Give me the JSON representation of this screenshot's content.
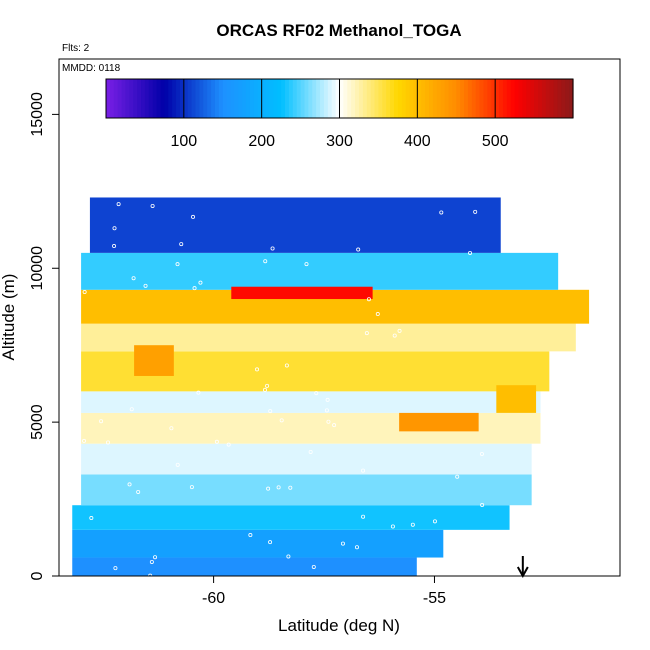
{
  "chart_data": {
    "type": "heatmap",
    "title": "ORCAS RF02 Methanol_TOGA",
    "annotations": {
      "flights": "Flts: 2",
      "date": "MMDD: 0118"
    },
    "xlabel": "Latitude (deg N)",
    "ylabel": "Altitude (m)",
    "xlim": [
      -63.5,
      -50.8
    ],
    "ylim": [
      0,
      16800
    ],
    "x_ticks": [
      -60,
      -55
    ],
    "x_tick_labels": [
      "-60",
      "-55"
    ],
    "y_ticks": [
      0,
      5000,
      10000,
      15000
    ],
    "y_tick_labels": [
      "0",
      "5000",
      "10000",
      "15000"
    ],
    "colorbar": {
      "range": [
        0,
        600
      ],
      "ticks": [
        100,
        200,
        300,
        400,
        500
      ],
      "tick_labels": [
        "100",
        "200",
        "300",
        "400",
        "500"
      ],
      "colors": [
        "#7a1fe6",
        "#0000a8",
        "#1e90ff",
        "#00bfff",
        "#ffffff",
        "#ffd700",
        "#ff8c00",
        "#ff0000",
        "#8b1a1a"
      ]
    },
    "arrow_marker_latitude": -53.0,
    "bands": [
      {
        "alt": [
          0,
          600
        ],
        "lat": [
          -63.2,
          -55.4
        ],
        "value": 150
      },
      {
        "alt": [
          600,
          1500
        ],
        "lat": [
          -63.2,
          -54.8
        ],
        "value": 175
      },
      {
        "alt": [
          1500,
          2300
        ],
        "lat": [
          -63.2,
          -53.3
        ],
        "value": 230
      },
      {
        "alt": [
          2300,
          3300
        ],
        "lat": [
          -63.0,
          -52.8
        ],
        "value": 260
      },
      {
        "alt": [
          3300,
          4300
        ],
        "lat": [
          -63.0,
          -52.8
        ],
        "value": 290
      },
      {
        "alt": [
          4300,
          5300
        ],
        "lat": [
          -63.0,
          -52.6
        ],
        "value": 320
      },
      {
        "alt": [
          5300,
          6000
        ],
        "lat": [
          -63.0,
          -52.6
        ],
        "value": 290
      },
      {
        "alt": [
          6000,
          7300
        ],
        "lat": [
          -63.0,
          -52.4
        ],
        "value": 360
      },
      {
        "alt": [
          7300,
          8200
        ],
        "lat": [
          -63.0,
          -51.8
        ],
        "value": 330
      },
      {
        "alt": [
          8200,
          9300
        ],
        "lat": [
          -63.0,
          -51.5
        ],
        "value": 400
      },
      {
        "alt": [
          9300,
          10500
        ],
        "lat": [
          -63.0,
          -52.2
        ],
        "value": 240
      },
      {
        "alt": [
          10500,
          12300
        ],
        "lat": [
          -62.8,
          -53.5
        ],
        "value": 110
      }
    ],
    "hotspots": [
      {
        "lat": [
          -59.6,
          -56.4
        ],
        "alt": [
          9000,
          9400
        ],
        "value": 520
      },
      {
        "lat": [
          -61.8,
          -60.9
        ],
        "alt": [
          6500,
          7500
        ],
        "value": 430
      },
      {
        "lat": [
          -55.8,
          -54.0
        ],
        "alt": [
          4700,
          5300
        ],
        "value": 440
      },
      {
        "lat": [
          -53.6,
          -52.7
        ],
        "alt": [
          5300,
          6200
        ],
        "value": 400
      }
    ]
  }
}
